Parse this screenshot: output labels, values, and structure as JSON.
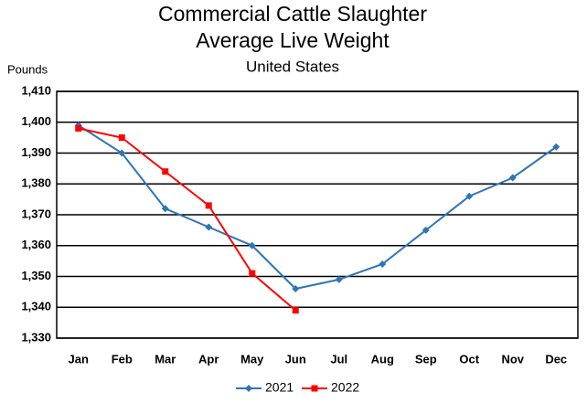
{
  "chart_data": {
    "type": "line",
    "title": [
      "Commercial Cattle Slaughter",
      "Average Live Weight"
    ],
    "subtitle": "United States",
    "y_label": "Pounds",
    "categories": [
      "Jan",
      "Feb",
      "Mar",
      "Apr",
      "May",
      "Jun",
      "Jul",
      "Aug",
      "Sep",
      "Oct",
      "Nov",
      "Dec"
    ],
    "series": [
      {
        "name": "2021",
        "color": "#2e75b6",
        "marker": "diamond",
        "values": [
          1399,
          1390,
          1372,
          1366,
          1360,
          1346,
          1349,
          1354,
          1365,
          1376,
          1382,
          1392
        ]
      },
      {
        "name": "2022",
        "color": "#ff0000",
        "marker": "square",
        "values": [
          1398,
          1395,
          1384,
          1373,
          1351,
          1339,
          null,
          null,
          null,
          null,
          null,
          null
        ]
      }
    ],
    "ylim": [
      1330,
      1410
    ],
    "yticks": [
      {
        "value": 1330,
        "label": "1,330"
      },
      {
        "value": 1340,
        "label": "1,340"
      },
      {
        "value": 1350,
        "label": "1,350"
      },
      {
        "value": 1360,
        "label": "1,360"
      },
      {
        "value": 1370,
        "label": "1,370"
      },
      {
        "value": 1380,
        "label": "1,380"
      },
      {
        "value": 1390,
        "label": "1,390"
      },
      {
        "value": 1400,
        "label": "1,400"
      },
      {
        "value": 1410,
        "label": "1,410"
      }
    ],
    "grid": true,
    "legend": "bottom"
  }
}
